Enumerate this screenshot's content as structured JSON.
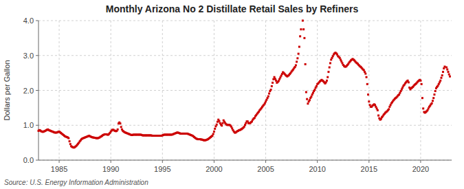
{
  "chart_data": {
    "type": "scatter",
    "title": "Monthly Arizona No 2 Distillate Retail Sales by Refiners",
    "y_label": "Dollars per Gallon",
    "annotations": [
      "Source: U.S. Energy Information Administration"
    ],
    "color": "#cc0000",
    "marker": "square",
    "grid": true,
    "xlim": [
      1983.0,
      2023.0
    ],
    "xticks": [
      1985,
      1990,
      1995,
      2000,
      2005,
      2010,
      2015,
      2020
    ],
    "ylim": [
      0.0,
      4.0
    ],
    "yticks": [
      {
        "value": 0.0,
        "label": "0.0"
      },
      {
        "value": 1.0,
        "label": "1.0"
      },
      {
        "value": 2.0,
        "label": "2.0"
      },
      {
        "value": 3.0,
        "label": "3.0"
      },
      {
        "value": 4.0,
        "label": "4.0"
      }
    ],
    "x": [
      1983.0,
      1983.083,
      1983.167,
      1983.25,
      1983.333,
      1983.417,
      1983.5,
      1983.583,
      1983.667,
      1983.75,
      1983.833,
      1983.917,
      1984.0,
      1984.083,
      1984.167,
      1984.25,
      1984.333,
      1984.417,
      1984.5,
      1984.583,
      1984.667,
      1984.75,
      1984.833,
      1984.917,
      1985.0,
      1985.083,
      1985.167,
      1985.25,
      1985.333,
      1985.417,
      1985.5,
      1985.583,
      1985.667,
      1985.75,
      1985.833,
      1985.917,
      1986.0,
      1986.083,
      1986.167,
      1986.25,
      1986.333,
      1986.417,
      1986.5,
      1986.583,
      1986.667,
      1986.75,
      1986.833,
      1986.917,
      1987.0,
      1987.083,
      1987.167,
      1987.25,
      1987.333,
      1987.417,
      1987.5,
      1987.583,
      1987.667,
      1987.75,
      1987.833,
      1987.917,
      1988.0,
      1988.083,
      1988.167,
      1988.25,
      1988.333,
      1988.417,
      1988.5,
      1988.583,
      1988.667,
      1988.75,
      1988.833,
      1988.917,
      1989.0,
      1989.083,
      1989.167,
      1989.25,
      1989.333,
      1989.417,
      1989.5,
      1989.583,
      1989.667,
      1989.75,
      1989.833,
      1989.917,
      1990.0,
      1990.083,
      1990.167,
      1990.25,
      1990.333,
      1990.417,
      1990.5,
      1990.583,
      1990.667,
      1990.75,
      1990.833,
      1990.917,
      1991.0,
      1991.083,
      1991.167,
      1991.25,
      1991.333,
      1991.417,
      1991.5,
      1991.583,
      1991.667,
      1991.75,
      1991.833,
      1991.917,
      1992.0,
      1992.083,
      1992.167,
      1992.25,
      1992.333,
      1992.417,
      1992.5,
      1992.583,
      1992.667,
      1992.75,
      1992.833,
      1992.917,
      1993.0,
      1993.083,
      1993.167,
      1993.25,
      1993.333,
      1993.417,
      1993.5,
      1993.583,
      1993.667,
      1993.75,
      1993.833,
      1993.917,
      1994.0,
      1994.083,
      1994.167,
      1994.25,
      1994.333,
      1994.417,
      1994.5,
      1994.583,
      1994.667,
      1994.75,
      1994.833,
      1994.917,
      1995.0,
      1995.083,
      1995.167,
      1995.25,
      1995.333,
      1995.417,
      1995.5,
      1995.583,
      1995.667,
      1995.75,
      1995.833,
      1995.917,
      1996.0,
      1996.083,
      1996.167,
      1996.25,
      1996.333,
      1996.417,
      1996.5,
      1996.583,
      1996.667,
      1996.75,
      1996.833,
      1996.917,
      1997.0,
      1997.083,
      1997.167,
      1997.25,
      1997.333,
      1997.417,
      1997.5,
      1997.583,
      1997.667,
      1997.75,
      1997.833,
      1997.917,
      1998.0,
      1998.083,
      1998.167,
      1998.25,
      1998.333,
      1998.417,
      1998.5,
      1998.583,
      1998.667,
      1998.75,
      1998.833,
      1998.917,
      1999.0,
      1999.083,
      1999.167,
      1999.25,
      1999.333,
      1999.417,
      1999.5,
      1999.583,
      1999.667,
      1999.75,
      1999.833,
      1999.917,
      2000.0,
      2000.083,
      2000.167,
      2000.25,
      2000.333,
      2000.417,
      2000.5,
      2000.583,
      2000.667,
      2000.75,
      2000.833,
      2000.917,
      2001.0,
      2001.083,
      2001.167,
      2001.25,
      2001.333,
      2001.417,
      2001.5,
      2001.583,
      2001.667,
      2001.75,
      2001.833,
      2001.917,
      2002.0,
      2002.083,
      2002.167,
      2002.25,
      2002.333,
      2002.417,
      2002.5,
      2002.583,
      2002.667,
      2002.75,
      2002.833,
      2002.917,
      2003.0,
      2003.083,
      2003.167,
      2003.25,
      2003.333,
      2003.417,
      2003.5,
      2003.583,
      2003.667,
      2003.75,
      2003.833,
      2003.917,
      2004.0,
      2004.083,
      2004.167,
      2004.25,
      2004.333,
      2004.417,
      2004.5,
      2004.583,
      2004.667,
      2004.75,
      2004.833,
      2004.917,
      2005.0,
      2005.083,
      2005.167,
      2005.25,
      2005.333,
      2005.417,
      2005.5,
      2005.583,
      2005.667,
      2005.75,
      2005.833,
      2005.917,
      2006.0,
      2006.083,
      2006.167,
      2006.25,
      2006.333,
      2006.417,
      2006.5,
      2006.583,
      2006.667,
      2006.75,
      2006.833,
      2006.917,
      2007.0,
      2007.083,
      2007.167,
      2007.25,
      2007.333,
      2007.417,
      2007.5,
      2007.583,
      2007.667,
      2007.75,
      2007.833,
      2007.917,
      2008.0,
      2008.083,
      2008.167,
      2008.25,
      2008.333,
      2008.417,
      2008.583,
      2008.667,
      2008.75,
      2008.833,
      2008.917,
      2009.0,
      2009.083,
      2009.167,
      2009.25,
      2009.333,
      2009.417,
      2009.5,
      2009.583,
      2009.667,
      2009.75,
      2009.833,
      2009.917,
      2010.0,
      2010.083,
      2010.167,
      2010.25,
      2010.333,
      2010.417,
      2010.5,
      2010.583,
      2010.667,
      2010.75,
      2010.833,
      2010.917,
      2011.0,
      2011.083,
      2011.167,
      2011.25,
      2011.333,
      2011.417,
      2011.5,
      2011.583,
      2011.667,
      2011.75,
      2011.833,
      2011.917,
      2012.0,
      2012.083,
      2012.167,
      2012.25,
      2012.333,
      2012.417,
      2012.5,
      2012.583,
      2012.667,
      2012.75,
      2012.833,
      2012.917,
      2013.0,
      2013.083,
      2013.167,
      2013.25,
      2013.333,
      2013.417,
      2013.5,
      2013.583,
      2013.667,
      2013.75,
      2013.833,
      2013.917,
      2014.0,
      2014.083,
      2014.167,
      2014.25,
      2014.333,
      2014.417,
      2014.5,
      2014.583,
      2014.667,
      2014.75,
      2014.833,
      2014.917,
      2015.0,
      2015.083,
      2015.167,
      2015.25,
      2015.333,
      2015.417,
      2015.5,
      2015.583,
      2015.667,
      2015.75,
      2015.833,
      2015.917,
      2016.0,
      2016.083,
      2016.167,
      2016.25,
      2016.333,
      2016.417,
      2016.5,
      2016.583,
      2016.667,
      2016.75,
      2016.833,
      2016.917,
      2017.0,
      2017.083,
      2017.167,
      2017.25,
      2017.333,
      2017.417,
      2017.5,
      2017.583,
      2017.667,
      2017.75,
      2017.833,
      2017.917,
      2018.0,
      2018.083,
      2018.167,
      2018.25,
      2018.333,
      2018.417,
      2018.5,
      2018.583,
      2018.667,
      2018.75,
      2018.833,
      2018.917,
      2019.0,
      2019.083,
      2019.167,
      2019.25,
      2019.333,
      2019.417,
      2019.5,
      2019.583,
      2019.667,
      2019.75,
      2019.833,
      2019.917,
      2020.0,
      2020.083,
      2020.167,
      2020.25,
      2020.333,
      2020.417,
      2020.5,
      2020.583,
      2020.667,
      2020.75,
      2020.833,
      2020.917,
      2021.0,
      2021.083,
      2021.167,
      2021.25,
      2021.333,
      2021.417,
      2021.5,
      2021.583,
      2021.667,
      2021.75,
      2021.833,
      2021.917,
      2022.0,
      2022.083,
      2022.167,
      2022.25,
      2022.333,
      2022.5,
      2022.583,
      2022.667,
      2022.75,
      2022.833
    ],
    "values": [
      0.84,
      0.86,
      0.85,
      0.83,
      0.82,
      0.81,
      0.82,
      0.83,
      0.84,
      0.86,
      0.87,
      0.88,
      0.86,
      0.85,
      0.84,
      0.83,
      0.82,
      0.81,
      0.8,
      0.79,
      0.79,
      0.79,
      0.8,
      0.81,
      0.82,
      0.8,
      0.78,
      0.76,
      0.74,
      0.72,
      0.7,
      0.68,
      0.67,
      0.66,
      0.65,
      0.63,
      0.54,
      0.46,
      0.4,
      0.38,
      0.37,
      0.36,
      0.37,
      0.39,
      0.41,
      0.44,
      0.47,
      0.5,
      0.54,
      0.57,
      0.6,
      0.62,
      0.63,
      0.64,
      0.65,
      0.66,
      0.67,
      0.68,
      0.69,
      0.7,
      0.68,
      0.67,
      0.66,
      0.65,
      0.65,
      0.64,
      0.64,
      0.63,
      0.63,
      0.63,
      0.64,
      0.65,
      0.67,
      0.68,
      0.7,
      0.72,
      0.73,
      0.74,
      0.74,
      0.74,
      0.73,
      0.73,
      0.75,
      0.78,
      0.82,
      0.85,
      0.87,
      0.87,
      0.85,
      0.84,
      0.83,
      0.84,
      0.88,
      1.05,
      1.08,
      1.05,
      0.95,
      0.88,
      0.84,
      0.82,
      0.8,
      0.79,
      0.78,
      0.77,
      0.76,
      0.75,
      0.74,
      0.73,
      0.72,
      0.72,
      0.73,
      0.73,
      0.73,
      0.73,
      0.73,
      0.73,
      0.73,
      0.73,
      0.73,
      0.73,
      0.72,
      0.71,
      0.71,
      0.71,
      0.71,
      0.71,
      0.71,
      0.71,
      0.71,
      0.71,
      0.71,
      0.71,
      0.7,
      0.7,
      0.7,
      0.7,
      0.7,
      0.7,
      0.7,
      0.7,
      0.7,
      0.7,
      0.7,
      0.7,
      0.71,
      0.72,
      0.73,
      0.73,
      0.73,
      0.73,
      0.73,
      0.73,
      0.73,
      0.73,
      0.73,
      0.73,
      0.74,
      0.75,
      0.76,
      0.77,
      0.78,
      0.79,
      0.79,
      0.78,
      0.77,
      0.76,
      0.76,
      0.76,
      0.76,
      0.76,
      0.76,
      0.76,
      0.76,
      0.76,
      0.75,
      0.74,
      0.73,
      0.72,
      0.71,
      0.7,
      0.68,
      0.66,
      0.64,
      0.62,
      0.61,
      0.6,
      0.6,
      0.6,
      0.6,
      0.59,
      0.59,
      0.58,
      0.57,
      0.57,
      0.57,
      0.58,
      0.59,
      0.6,
      0.62,
      0.64,
      0.66,
      0.68,
      0.7,
      0.75,
      0.82,
      0.9,
      0.97,
      1.02,
      1.1,
      1.16,
      1.12,
      1.06,
      1.02,
      0.99,
      1.06,
      1.14,
      1.1,
      1.06,
      1.03,
      1.01,
      1.01,
      1.01,
      1.01,
      0.99,
      0.96,
      0.91,
      0.86,
      0.82,
      0.79,
      0.79,
      0.81,
      0.83,
      0.84,
      0.86,
      0.86,
      0.88,
      0.89,
      0.91,
      0.93,
      0.96,
      1.01,
      1.06,
      1.11,
      1.11,
      1.06,
      1.06,
      1.06,
      1.09,
      1.11,
      1.16,
      1.19,
      1.21,
      1.26,
      1.29,
      1.33,
      1.36,
      1.39,
      1.43,
      1.46,
      1.49,
      1.53,
      1.56,
      1.59,
      1.63,
      1.68,
      1.73,
      1.78,
      1.83,
      1.91,
      1.98,
      2.02,
      2.12,
      2.22,
      2.32,
      2.38,
      2.33,
      2.28,
      2.22,
      2.24,
      2.27,
      2.32,
      2.37,
      2.42,
      2.47,
      2.52,
      2.5,
      2.47,
      2.44,
      2.42,
      2.4,
      2.42,
      2.44,
      2.47,
      2.5,
      2.54,
      2.57,
      2.6,
      2.64,
      2.67,
      2.72,
      2.82,
      2.92,
      3.05,
      3.25,
      3.55,
      3.75,
      4.0,
      3.75,
      3.5,
      2.75,
      1.95,
      1.75,
      1.62,
      1.68,
      1.72,
      1.78,
      1.82,
      1.88,
      1.93,
      1.98,
      2.02,
      2.08,
      2.12,
      2.18,
      2.2,
      2.23,
      2.26,
      2.28,
      2.3,
      2.28,
      2.26,
      2.23,
      2.2,
      2.23,
      2.28,
      2.38,
      2.53,
      2.66,
      2.78,
      2.88,
      2.93,
      2.98,
      3.03,
      3.06,
      3.08,
      3.06,
      3.03,
      2.98,
      2.96,
      2.93,
      2.88,
      2.83,
      2.78,
      2.73,
      2.7,
      2.68,
      2.68,
      2.7,
      2.73,
      2.76,
      2.8,
      2.83,
      2.86,
      2.88,
      2.9,
      2.88,
      2.86,
      2.83,
      2.8,
      2.78,
      2.76,
      2.73,
      2.7,
      2.68,
      2.66,
      2.63,
      2.6,
      2.58,
      2.53,
      2.48,
      2.38,
      2.18,
      1.88,
      1.68,
      1.58,
      1.53,
      1.53,
      1.56,
      1.58,
      1.6,
      1.58,
      1.53,
      1.48,
      1.43,
      1.28,
      1.2,
      1.16,
      1.18,
      1.23,
      1.26,
      1.3,
      1.33,
      1.36,
      1.38,
      1.4,
      1.43,
      1.46,
      1.53,
      1.58,
      1.63,
      1.66,
      1.7,
      1.73,
      1.76,
      1.78,
      1.8,
      1.83,
      1.86,
      1.88,
      1.93,
      1.98,
      2.03,
      2.08,
      2.13,
      2.16,
      2.2,
      2.23,
      2.26,
      2.28,
      2.23,
      2.08,
      2.03,
      2.06,
      2.08,
      2.1,
      2.13,
      2.16,
      2.18,
      2.2,
      2.23,
      2.26,
      2.28,
      2.3,
      2.28,
      2.18,
      1.78,
      1.48,
      1.38,
      1.36,
      1.38,
      1.4,
      1.43,
      1.48,
      1.53,
      1.56,
      1.6,
      1.63,
      1.7,
      1.78,
      1.88,
      1.98,
      2.06,
      2.1,
      2.13,
      2.18,
      2.23,
      2.28,
      2.36,
      2.43,
      2.53,
      2.63,
      2.68,
      2.66,
      2.6,
      2.53,
      2.46,
      2.4
    ]
  }
}
